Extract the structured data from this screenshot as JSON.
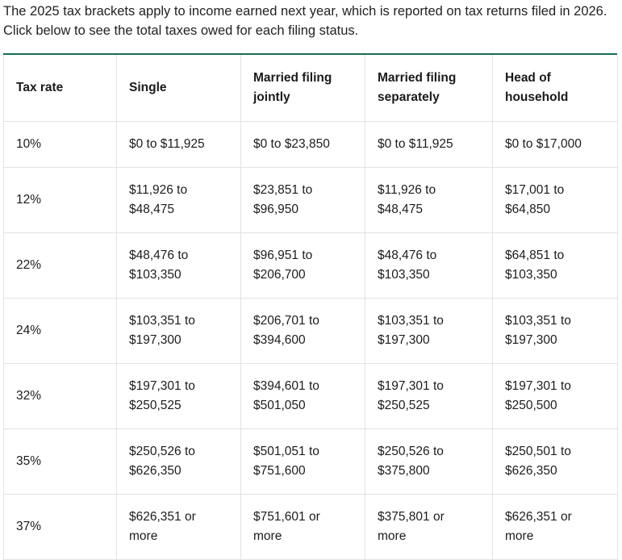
{
  "intro_text": "The 2025 tax brackets apply to income earned next year, which is reported on tax returns filed in 2026. Click below to see the total taxes owed for each filing status.",
  "table": {
    "headers": [
      {
        "line1": "Tax rate",
        "line2": ""
      },
      {
        "line1": "Single",
        "line2": ""
      },
      {
        "line1": "Married filing",
        "line2": "jointly"
      },
      {
        "line1": "Married filing",
        "line2": "separately"
      },
      {
        "line1": "Head of",
        "line2": "household"
      }
    ],
    "rows": [
      {
        "rate": "10%",
        "cells": [
          {
            "line1": "$0 to $11,925",
            "line2": ""
          },
          {
            "line1": "$0 to $23,850",
            "line2": ""
          },
          {
            "line1": "$0 to $11,925",
            "line2": ""
          },
          {
            "line1": "$0 to $17,000",
            "line2": ""
          }
        ]
      },
      {
        "rate": "12%",
        "cells": [
          {
            "line1": "$11,926 to",
            "line2": "$48,475"
          },
          {
            "line1": "$23,851 to",
            "line2": "$96,950"
          },
          {
            "line1": "$11,926 to",
            "line2": "$48,475"
          },
          {
            "line1": "$17,001 to",
            "line2": "$64,850"
          }
        ]
      },
      {
        "rate": "22%",
        "cells": [
          {
            "line1": "$48,476 to",
            "line2": "$103,350"
          },
          {
            "line1": "$96,951 to",
            "line2": "$206,700"
          },
          {
            "line1": "$48,476 to",
            "line2": "$103,350"
          },
          {
            "line1": "$64,851 to",
            "line2": "$103,350"
          }
        ]
      },
      {
        "rate": "24%",
        "cells": [
          {
            "line1": "$103,351 to",
            "line2": "$197,300"
          },
          {
            "line1": "$206,701 to",
            "line2": "$394,600"
          },
          {
            "line1": "$103,351 to",
            "line2": "$197,300"
          },
          {
            "line1": "$103,351 to",
            "line2": "$197,300"
          }
        ]
      },
      {
        "rate": "32%",
        "cells": [
          {
            "line1": "$197,301 to",
            "line2": "$250,525"
          },
          {
            "line1": "$394,601 to",
            "line2": "$501,050"
          },
          {
            "line1": "$197,301 to",
            "line2": "$250,525"
          },
          {
            "line1": "$197,301 to",
            "line2": "$250,500"
          }
        ]
      },
      {
        "rate": "35%",
        "cells": [
          {
            "line1": "$250,526 to",
            "line2": "$626,350"
          },
          {
            "line1": "$501,051 to",
            "line2": "$751,600"
          },
          {
            "line1": "$250,526 to",
            "line2": "$375,800"
          },
          {
            "line1": "$250,501 to",
            "line2": "$626,350"
          }
        ]
      },
      {
        "rate": "37%",
        "cells": [
          {
            "line1": "$626,351 or",
            "line2": "more"
          },
          {
            "line1": "$751,601 or",
            "line2": "more"
          },
          {
            "line1": "$375,801 or",
            "line2": "more"
          },
          {
            "line1": "$626,351 or",
            "line2": "more"
          }
        ]
      }
    ]
  },
  "colors": {
    "accent_rule": "#146e4b",
    "grid_line": "#e2e2e2"
  }
}
